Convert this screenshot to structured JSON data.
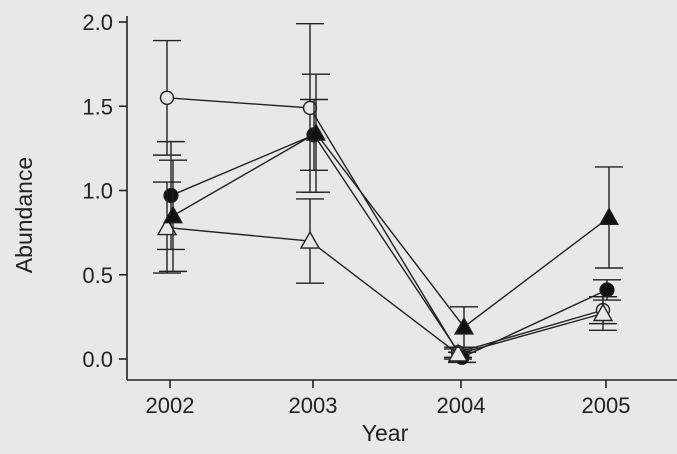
{
  "chart_data": {
    "type": "line",
    "title": "",
    "xlabel": "Year",
    "ylabel": "Abundance",
    "x": [
      2002,
      2003,
      2004,
      2005
    ],
    "xticks": [
      "2002",
      "2003",
      "2004",
      "2005"
    ],
    "yticks": [
      "0.0",
      "0.5",
      "1.0",
      "1.5",
      "2.0"
    ],
    "ylim": [
      -0.12,
      2.05
    ],
    "grid": false,
    "legend": "none",
    "series": [
      {
        "marker": "open-circle",
        "values": [
          1.55,
          1.49,
          0.04,
          0.29
        ],
        "errors": [
          0.34,
          0.5,
          0.03,
          0.08
        ]
      },
      {
        "marker": "filled-circle",
        "values": [
          0.97,
          1.33,
          0.01,
          0.41
        ],
        "errors": [
          0.32,
          0.21,
          0.03,
          0.06
        ]
      },
      {
        "marker": "open-triangle",
        "values": [
          0.78,
          0.7,
          0.03,
          0.27
        ],
        "errors": [
          0.27,
          0.25,
          0.03,
          0.1
        ]
      },
      {
        "marker": "filled-triangle",
        "values": [
          0.85,
          1.34,
          0.19,
          0.84
        ],
        "errors": [
          0.33,
          0.35,
          0.12,
          0.3
        ]
      }
    ]
  }
}
